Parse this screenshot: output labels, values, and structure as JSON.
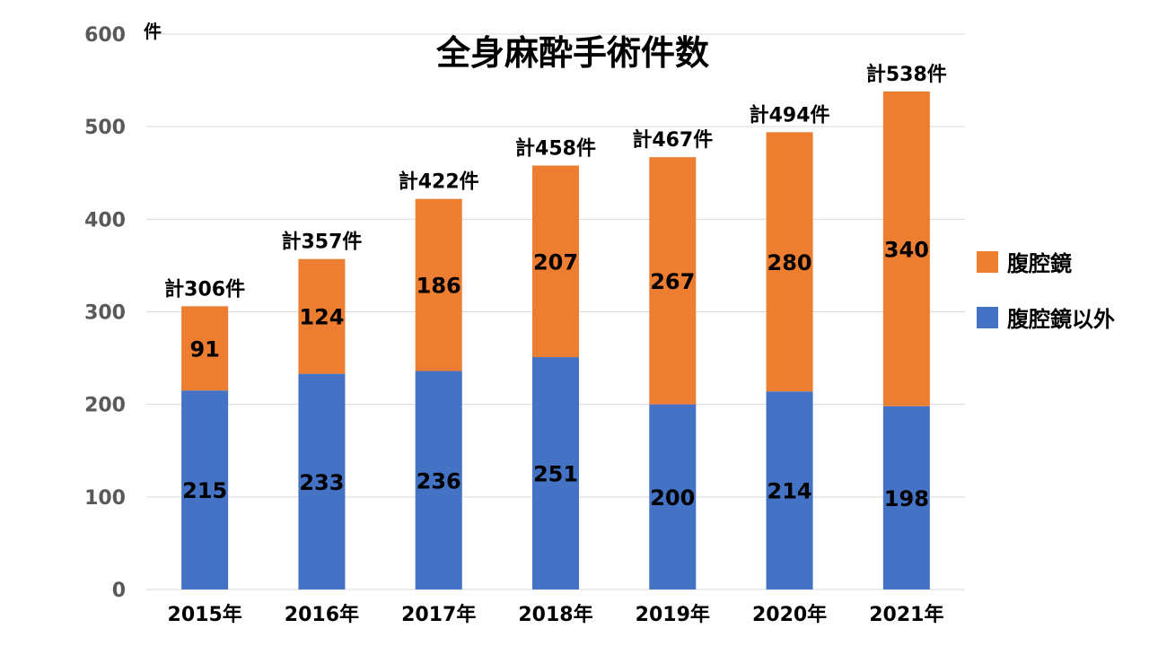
{
  "chart_data": {
    "type": "bar",
    "stacked": true,
    "title": "全身麻酔手術件数",
    "ylabel": "件",
    "xlabel": "",
    "ylim": [
      0,
      600
    ],
    "yticks": [
      0,
      100,
      200,
      300,
      400,
      500,
      600
    ],
    "grid": true,
    "legend_position": "right",
    "categories": [
      "2015年",
      "2016年",
      "2017年",
      "2018年",
      "2019年",
      "2020年",
      "2021年"
    ],
    "series": [
      {
        "name": "腹腔鏡以外",
        "color": "#4472c4",
        "values": [
          215,
          233,
          236,
          251,
          200,
          214,
          198
        ]
      },
      {
        "name": "腹腔鏡",
        "color": "#ed7d31",
        "values": [
          91,
          124,
          186,
          207,
          267,
          280,
          340
        ]
      }
    ],
    "totals": [
      "計306件",
      "計357件",
      "計422件",
      "計458件",
      "計467件",
      "計494件",
      "計538件"
    ]
  }
}
